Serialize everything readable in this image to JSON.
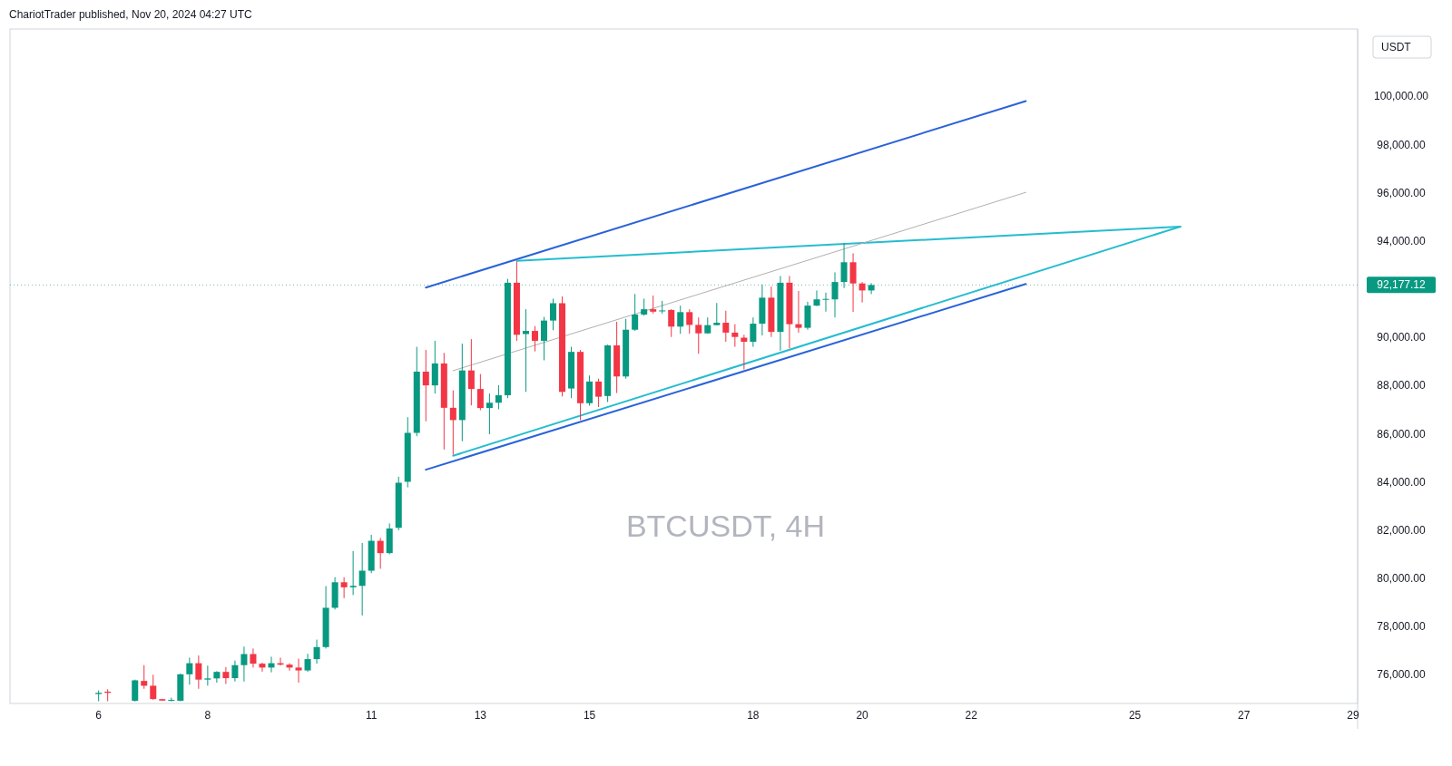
{
  "chart_data": {
    "type": "candlestick",
    "title": "BTCUSDT, 4H",
    "ylabel": "USDT",
    "annotations": [
      "ChariotTrader published, Nov 20, 2024 04:27 UTC"
    ],
    "x": [
      "2024-11-06T00:00",
      "2024-11-06T04:00",
      "2024-11-06T16:00",
      "2024-11-06T20:00",
      "2024-11-07T00:00",
      "2024-11-07T04:00",
      "2024-11-07T08:00",
      "2024-11-07T12:00",
      "2024-11-07T16:00",
      "2024-11-07T20:00",
      "2024-11-08T00:00",
      "2024-11-08T04:00",
      "2024-11-08T08:00",
      "2024-11-08T12:00",
      "2024-11-08T16:00",
      "2024-11-08T20:00",
      "2024-11-09T00:00",
      "2024-11-09T04:00",
      "2024-11-09T08:00",
      "2024-11-09T12:00",
      "2024-11-09T16:00",
      "2024-11-09T20:00",
      "2024-11-10T00:00",
      "2024-11-10T04:00",
      "2024-11-10T08:00",
      "2024-11-10T12:00",
      "2024-11-10T16:00",
      "2024-11-10T20:00",
      "2024-11-11T00:00",
      "2024-11-11T04:00",
      "2024-11-11T08:00",
      "2024-11-11T12:00",
      "2024-11-11T16:00",
      "2024-11-11T20:00",
      "2024-11-12T00:00",
      "2024-11-12T04:00",
      "2024-11-12T08:00",
      "2024-11-12T12:00",
      "2024-11-12T16:00",
      "2024-11-12T20:00",
      "2024-11-13T00:00",
      "2024-11-13T04:00",
      "2024-11-13T08:00",
      "2024-11-13T12:00",
      "2024-11-13T16:00",
      "2024-11-13T20:00",
      "2024-11-14T00:00",
      "2024-11-14T04:00",
      "2024-11-14T08:00",
      "2024-11-14T12:00",
      "2024-11-14T16:00",
      "2024-11-14T20:00",
      "2024-11-15T00:00",
      "2024-11-15T04:00",
      "2024-11-15T08:00",
      "2024-11-15T12:00",
      "2024-11-15T16:00",
      "2024-11-15T20:00",
      "2024-11-16T00:00",
      "2024-11-16T04:00",
      "2024-11-16T08:00",
      "2024-11-16T12:00",
      "2024-11-16T16:00",
      "2024-11-16T20:00",
      "2024-11-17T00:00",
      "2024-11-17T04:00",
      "2024-11-17T08:00",
      "2024-11-17T12:00",
      "2024-11-17T16:00",
      "2024-11-17T20:00",
      "2024-11-18T00:00",
      "2024-11-18T04:00",
      "2024-11-18T08:00",
      "2024-11-18T12:00",
      "2024-11-18T16:00",
      "2024-11-18T20:00",
      "2024-11-19T00:00",
      "2024-11-19T04:00",
      "2024-11-19T08:00",
      "2024-11-19T12:00",
      "2024-11-19T16:00",
      "2024-11-19T20:00",
      "2024-11-20T00:00",
      "2024-11-20T04:00"
    ],
    "ohlc": [
      [
        75200,
        75350,
        74900,
        75250
      ],
      [
        75300,
        75400,
        74900,
        75250
      ],
      [
        74920,
        75800,
        74890,
        75770
      ],
      [
        75745,
        76400,
        75420,
        75545
      ],
      [
        75545,
        76000,
        74960,
        74993
      ],
      [
        74990,
        75000,
        74920,
        74930
      ],
      [
        74950,
        75050,
        74890,
        74960
      ],
      [
        74920,
        76050,
        74900,
        76020
      ],
      [
        76020,
        76710,
        75590,
        76480
      ],
      [
        76480,
        76800,
        75420,
        75800
      ],
      [
        75800,
        76380,
        75545,
        75850
      ],
      [
        75850,
        76150,
        75670,
        76120
      ],
      [
        76120,
        76320,
        75620,
        75860
      ],
      [
        75860,
        76590,
        75720,
        76400
      ],
      [
        76400,
        77170,
        75720,
        76860
      ],
      [
        76860,
        77090,
        76300,
        76460
      ],
      [
        76460,
        76500,
        76130,
        76300
      ],
      [
        76300,
        76750,
        76100,
        76480
      ],
      [
        76480,
        76710,
        76380,
        76420
      ],
      [
        76420,
        76480,
        76170,
        76300
      ],
      [
        76300,
        76670,
        75670,
        76180
      ],
      [
        76180,
        76870,
        76130,
        76650
      ],
      [
        76650,
        77460,
        76460,
        77150
      ],
      [
        77150,
        79680,
        77090,
        78780
      ],
      [
        78780,
        80050,
        78710,
        79840
      ],
      [
        79840,
        80050,
        79180,
        79630
      ],
      [
        79630,
        81130,
        79310,
        79690
      ],
      [
        79690,
        81470,
        78460,
        80320
      ],
      [
        80320,
        81810,
        80220,
        81560
      ],
      [
        81560,
        81680,
        80400,
        81050
      ],
      [
        81050,
        82280,
        81000,
        82070
      ],
      [
        82100,
        84220,
        82000,
        83970
      ],
      [
        84010,
        86690,
        83780,
        86040
      ],
      [
        86040,
        89610,
        85900,
        88580
      ],
      [
        88580,
        89480,
        86520,
        88010
      ],
      [
        88010,
        89860,
        87670,
        88920
      ],
      [
        88920,
        89360,
        85350,
        87080
      ],
      [
        87080,
        87800,
        85130,
        86570
      ],
      [
        86570,
        89740,
        85690,
        88630
      ],
      [
        88630,
        89930,
        87180,
        87860
      ],
      [
        87860,
        88480,
        86980,
        87070
      ],
      [
        87070,
        87670,
        85980,
        87290
      ],
      [
        87290,
        88020,
        87020,
        87600
      ],
      [
        87600,
        92430,
        87480,
        92270
      ],
      [
        92270,
        93150,
        89860,
        90110
      ],
      [
        90140,
        91170,
        87740,
        90270
      ],
      [
        90270,
        90470,
        89420,
        89860
      ],
      [
        89860,
        90850,
        89050,
        90700
      ],
      [
        90700,
        91610,
        90300,
        91420
      ],
      [
        91420,
        91700,
        87550,
        87740
      ],
      [
        87880,
        89610,
        87480,
        89400
      ],
      [
        89400,
        89480,
        86570,
        87270
      ],
      [
        87270,
        88420,
        87170,
        88170
      ],
      [
        88170,
        88290,
        87110,
        87540
      ],
      [
        87570,
        89700,
        87320,
        89670
      ],
      [
        89670,
        90650,
        87690,
        88380
      ],
      [
        88380,
        90770,
        88290,
        90320
      ],
      [
        90320,
        91800,
        90270,
        90950
      ],
      [
        90950,
        91610,
        90900,
        91170
      ],
      [
        91170,
        91740,
        90990,
        91070
      ],
      [
        91100,
        91520,
        90990,
        91120
      ],
      [
        91140,
        91170,
        90020,
        90450
      ],
      [
        90450,
        91320,
        90150,
        91050
      ],
      [
        91050,
        91170,
        90150,
        90520
      ],
      [
        90520,
        90830,
        89320,
        90170
      ],
      [
        90170,
        90830,
        90150,
        90510
      ],
      [
        90510,
        91430,
        90500,
        90610
      ],
      [
        90610,
        91110,
        89820,
        90200
      ],
      [
        90200,
        90550,
        89610,
        90020
      ],
      [
        89990,
        90110,
        88670,
        89820
      ],
      [
        89820,
        90830,
        89610,
        90570
      ],
      [
        90570,
        92200,
        90080,
        91650
      ],
      [
        91650,
        92110,
        90020,
        90230
      ],
      [
        90230,
        92550,
        89450,
        92270
      ],
      [
        92270,
        92550,
        89550,
        90550
      ],
      [
        90550,
        91930,
        90200,
        90400
      ],
      [
        90400,
        91480,
        90320,
        91320
      ],
      [
        91320,
        91950,
        91300,
        91580
      ],
      [
        91580,
        91860,
        91070,
        91600
      ],
      [
        91580,
        92700,
        90830,
        92300
      ],
      [
        92300,
        93910,
        92050,
        93120
      ],
      [
        93120,
        93490,
        91060,
        92240
      ],
      [
        92240,
        92300,
        91450,
        91950
      ],
      [
        91950,
        92250,
        91800,
        92177
      ]
    ],
    "colors": [
      "#089981",
      "#f23645",
      "#089981",
      "#f23645",
      "#f23645",
      "#f23645",
      "#089981",
      "#089981",
      "#089981",
      "#f23645",
      "#089981",
      "#089981",
      "#f23645",
      "#089981",
      "#089981",
      "#f23645",
      "#f23645",
      "#089981",
      "#f23645",
      "#f23645",
      "#f23645",
      "#089981",
      "#089981",
      "#089981",
      "#089981",
      "#f23645",
      "#089981",
      "#089981",
      "#089981",
      "#f23645",
      "#089981",
      "#089981",
      "#089981",
      "#089981",
      "#f23645",
      "#089981",
      "#f23645",
      "#f23645",
      "#089981",
      "#f23645",
      "#f23645",
      "#089981",
      "#089981",
      "#089981",
      "#f23645",
      "#089981",
      "#f23645",
      "#089981",
      "#089981",
      "#f23645",
      "#089981",
      "#f23645",
      "#089981",
      "#f23645",
      "#089981",
      "#f23645",
      "#089981",
      "#089981",
      "#089981",
      "#f23645",
      "#089981",
      "#f23645",
      "#089981",
      "#f23645",
      "#f23645",
      "#089981",
      "#089981",
      "#f23645",
      "#f23645",
      "#f23645",
      "#089981",
      "#089981",
      "#f23645",
      "#089981",
      "#f23645",
      "#f23645",
      "#089981",
      "#089981",
      "#089981",
      "#089981",
      "#089981",
      "#f23645",
      "#f23645",
      "#089981"
    ],
    "series": [
      {
        "type": "line",
        "x": [
          "2024-11-12T00:00",
          "2024-11-23T00:00"
        ],
        "values": [
          92070,
          99810
        ],
        "color": "#2962d9"
      },
      {
        "type": "line",
        "x": [
          "2024-11-12T00:00",
          "2024-11-23T00:00"
        ],
        "values": [
          84510,
          92220
        ],
        "color": "#2962d9"
      },
      {
        "type": "line",
        "x": [
          "2024-11-13T16:00",
          "2024-11-25T20:00"
        ],
        "values": [
          93180,
          94600
        ],
        "color": "#26bcd0"
      },
      {
        "type": "line",
        "x": [
          "2024-11-12T12:00",
          "2024-11-25T20:00"
        ],
        "values": [
          85090,
          94600
        ],
        "color": "#26bcd0"
      },
      {
        "type": "line",
        "x": [
          "2024-11-12T12:00",
          "2024-11-23T00:00"
        ],
        "values": [
          88620,
          96020
        ],
        "color": "#b0b0b0"
      }
    ],
    "ref_lines": [
      {
        "axis": "y",
        "value": 92177.12,
        "label": "92,177.12",
        "color": "#089981",
        "line_style": "dotted"
      }
    ],
    "xlim": [
      "2024-11-04T09:00",
      "2024-11-29T02:00"
    ],
    "xticks": [
      {
        "value": "2024-11-06",
        "label": "6"
      },
      {
        "value": "2024-11-08",
        "label": "8"
      },
      {
        "value": "2024-11-11",
        "label": "11"
      },
      {
        "value": "2024-11-13",
        "label": "13"
      },
      {
        "value": "2024-11-15",
        "label": "15"
      },
      {
        "value": "2024-11-18",
        "label": "18"
      },
      {
        "value": "2024-11-20",
        "label": "20"
      },
      {
        "value": "2024-11-22",
        "label": "22"
      },
      {
        "value": "2024-11-25",
        "label": "25"
      },
      {
        "value": "2024-11-27",
        "label": "27"
      },
      {
        "value": "2024-11-29",
        "label": "29"
      }
    ],
    "ylim": [
      74810,
      102800
    ],
    "yticks": [
      {
        "value": 76000,
        "label": "76,000.00"
      },
      {
        "value": 78000,
        "label": "78,000.00"
      },
      {
        "value": 80000,
        "label": "80,000.00"
      },
      {
        "value": 82000,
        "label": "82,000.00"
      },
      {
        "value": 84000,
        "label": "84,000.00"
      },
      {
        "value": 86000,
        "label": "86,000.00"
      },
      {
        "value": 88000,
        "label": "88,000.00"
      },
      {
        "value": 90000,
        "label": "90,000.00"
      },
      {
        "value": 94000,
        "label": "94,000.00"
      },
      {
        "value": 96000,
        "label": "96,000.00"
      },
      {
        "value": 98000,
        "label": "98,000.00"
      },
      {
        "value": 100000,
        "label": "100,000.00"
      }
    ],
    "grid": false
  }
}
